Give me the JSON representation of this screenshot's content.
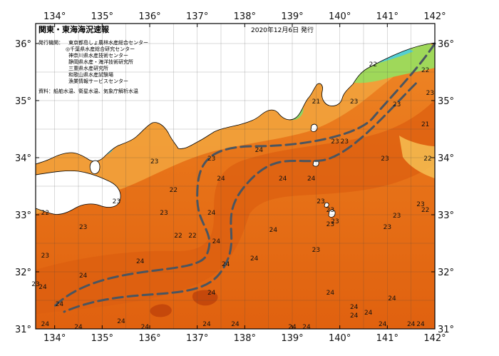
{
  "header": {
    "title": "関東・東海海況速報",
    "date": "2020年12月6日 発行"
  },
  "issuer": {
    "label": "発行機関：",
    "orgs": [
      "東京都島しょ農林水産総合センター",
      "◎千葉県水産総合研究センター",
      "神奈川県水産技術センター",
      "静岡県水産・海洋技術研究所",
      "三重県水産研究所",
      "和歌山県水産試験場",
      "漁業情報サービスセンター"
    ]
  },
  "source": "資料：船舶水温、衛星水温、気象庁解析水温",
  "axes": {
    "lon_ticks": [
      "134°",
      "135°",
      "136°",
      "137°",
      "138°",
      "139°",
      "140°",
      "141°",
      "142°"
    ],
    "lat_ticks_left": [
      "36°",
      "35°",
      "34°",
      "33°",
      "32°",
      "31°"
    ],
    "lat_ticks_right": [
      "36°",
      "35°",
      "34°",
      "33°",
      "32°",
      "31°"
    ]
  },
  "temperatures": [
    {
      "lon": 140.7,
      "lat": 35.6,
      "t": "22"
    },
    {
      "lon": 141.8,
      "lat": 35.5,
      "t": "22"
    },
    {
      "lon": 141.9,
      "lat": 35.1,
      "t": "23"
    },
    {
      "lon": 139.5,
      "lat": 34.95,
      "t": "21"
    },
    {
      "lon": 140.3,
      "lat": 34.95,
      "t": "23"
    },
    {
      "lon": 141.2,
      "lat": 34.9,
      "t": "23"
    },
    {
      "lon": 141.8,
      "lat": 34.55,
      "t": "21"
    },
    {
      "lon": 139.9,
      "lat": 34.25,
      "t": "23"
    },
    {
      "lon": 140.1,
      "lat": 34.25,
      "t": "23"
    },
    {
      "lon": 138.3,
      "lat": 34.1,
      "t": "24"
    },
    {
      "lon": 140.95,
      "lat": 33.95,
      "t": "23"
    },
    {
      "lon": 141.85,
      "lat": 33.95,
      "t": "22"
    },
    {
      "lon": 136.1,
      "lat": 33.9,
      "t": "23"
    },
    {
      "lon": 137.3,
      "lat": 33.95,
      "t": "23"
    },
    {
      "lon": 137.5,
      "lat": 33.6,
      "t": "24"
    },
    {
      "lon": 138.8,
      "lat": 33.6,
      "t": "24"
    },
    {
      "lon": 139.4,
      "lat": 33.6,
      "t": "24"
    },
    {
      "lon": 135.3,
      "lat": 33.2,
      "t": "23"
    },
    {
      "lon": 133.8,
      "lat": 33.0,
      "t": "22"
    },
    {
      "lon": 136.5,
      "lat": 33.4,
      "t": "22"
    },
    {
      "lon": 141.7,
      "lat": 33.15,
      "t": "23"
    },
    {
      "lon": 141.8,
      "lat": 33.05,
      "t": "22"
    },
    {
      "lon": 139.6,
      "lat": 33.2,
      "t": "23"
    },
    {
      "lon": 139.8,
      "lat": 33.05,
      "t": "23"
    },
    {
      "lon": 136.3,
      "lat": 33.0,
      "t": "23"
    },
    {
      "lon": 137.3,
      "lat": 33.0,
      "t": "24"
    },
    {
      "lon": 139.9,
      "lat": 32.85,
      "t": "23"
    },
    {
      "lon": 141.2,
      "lat": 32.95,
      "t": "23"
    },
    {
      "lon": 134.6,
      "lat": 32.75,
      "t": "23"
    },
    {
      "lon": 136.6,
      "lat": 32.6,
      "t": "22"
    },
    {
      "lon": 136.9,
      "lat": 32.6,
      "t": "22"
    },
    {
      "lon": 139.8,
      "lat": 32.8,
      "t": "23"
    },
    {
      "lon": 138.6,
      "lat": 32.7,
      "t": "24"
    },
    {
      "lon": 141.0,
      "lat": 32.75,
      "t": "23"
    },
    {
      "lon": 137.4,
      "lat": 32.5,
      "t": "24"
    },
    {
      "lon": 139.5,
      "lat": 32.35,
      "t": "23"
    },
    {
      "lon": 138.2,
      "lat": 32.2,
      "t": "24"
    },
    {
      "lon": 137.6,
      "lat": 32.1,
      "t": "24"
    },
    {
      "lon": 133.8,
      "lat": 32.25,
      "t": "23"
    },
    {
      "lon": 135.8,
      "lat": 32.15,
      "t": "24"
    },
    {
      "lon": 133.6,
      "lat": 31.75,
      "t": "23"
    },
    {
      "lon": 133.75,
      "lat": 31.7,
      "t": "24"
    },
    {
      "lon": 134.6,
      "lat": 31.9,
      "t": "24"
    },
    {
      "lon": 137.3,
      "lat": 31.6,
      "t": "24"
    },
    {
      "lon": 139.8,
      "lat": 31.6,
      "t": "24"
    },
    {
      "lon": 140.3,
      "lat": 31.35,
      "t": "24"
    },
    {
      "lon": 141.1,
      "lat": 31.5,
      "t": "24"
    },
    {
      "lon": 134.1,
      "lat": 31.4,
      "t": "24"
    },
    {
      "lon": 133.8,
      "lat": 31.05,
      "t": "24"
    },
    {
      "lon": 134.5,
      "lat": 31.0,
      "t": "24"
    },
    {
      "lon": 135.4,
      "lat": 31.1,
      "t": "24"
    },
    {
      "lon": 135.9,
      "lat": 31.0,
      "t": "24"
    },
    {
      "lon": 137.2,
      "lat": 31.05,
      "t": "24"
    },
    {
      "lon": 137.8,
      "lat": 31.05,
      "t": "24"
    },
    {
      "lon": 139.0,
      "lat": 31.0,
      "t": "24"
    },
    {
      "lon": 139.3,
      "lat": 31.0,
      "t": "24"
    },
    {
      "lon": 140.3,
      "lat": 31.2,
      "t": "24"
    },
    {
      "lon": 140.6,
      "lat": 31.25,
      "t": "24"
    },
    {
      "lon": 140.9,
      "lat": 31.05,
      "t": "24"
    },
    {
      "lon": 141.5,
      "lat": 31.05,
      "t": "24"
    },
    {
      "lon": 141.7,
      "lat": 31.05,
      "t": "24"
    }
  ],
  "colors": {
    "warm_deep": "#d9580e",
    "warm_mid": "#ea7a1c",
    "warm_light": "#f39a35",
    "cool_yellow": "#f7c85a",
    "cold_green": "#9fd85a",
    "cold_cyan": "#43c9e0",
    "land": "#ffffff",
    "current_axis": "#4a5560"
  }
}
